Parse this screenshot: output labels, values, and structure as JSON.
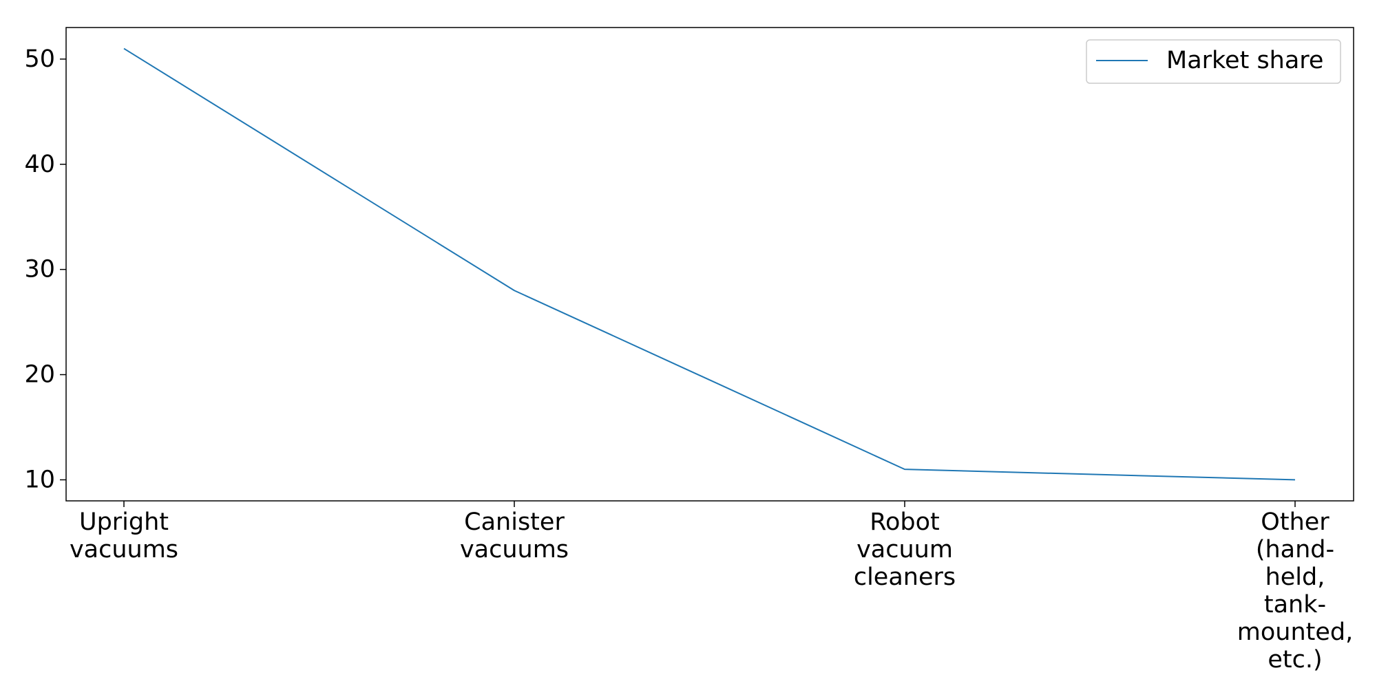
{
  "chart_data": {
    "type": "line",
    "categories": [
      "Upright vacuums",
      "Canister vacuums",
      "Robot vacuum cleaners",
      "Other (hand-held, tank-mounted, etc.)"
    ],
    "category_label_lines": [
      [
        "Upright",
        "vacuums"
      ],
      [
        "Canister",
        "vacuums"
      ],
      [
        "Robot",
        "vacuum",
        "cleaners"
      ],
      [
        "Other",
        "(hand-",
        "held,",
        "tank-",
        "mounted,",
        "etc.)"
      ]
    ],
    "series": [
      {
        "name": "Market share",
        "values": [
          51,
          28,
          11,
          10
        ],
        "color": "#1f77b4"
      }
    ],
    "yticks": [
      10,
      20,
      30,
      40,
      50
    ],
    "ylim": [
      8,
      53
    ],
    "grid": false,
    "legend_position": "top-right"
  }
}
